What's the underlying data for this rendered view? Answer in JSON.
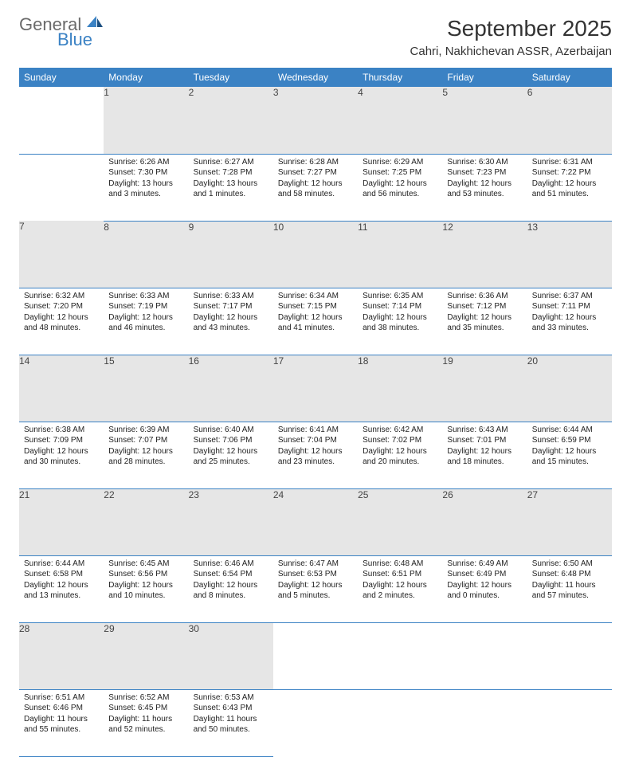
{
  "logo": {
    "word1": "General",
    "word2": "Blue"
  },
  "title": "September 2025",
  "location": "Cahri, Nakhichevan ASSR, Azerbaijan",
  "colors": {
    "header_bg": "#3b82c4",
    "header_text": "#ffffff",
    "daynum_bg": "#e6e6e6",
    "border": "#3b82c4",
    "text": "#222222",
    "logo_gray": "#6a6a6a",
    "logo_blue": "#3b82c4"
  },
  "typography": {
    "title_fontsize": 28,
    "location_fontsize": 15,
    "header_fontsize": 12,
    "cell_fontsize": 10
  },
  "weekdays": [
    "Sunday",
    "Monday",
    "Tuesday",
    "Wednesday",
    "Thursday",
    "Friday",
    "Saturday"
  ],
  "weeks": [
    [
      null,
      {
        "n": "1",
        "sr": "Sunrise: 6:26 AM",
        "ss": "Sunset: 7:30 PM",
        "dl": "Daylight: 13 hours and 3 minutes."
      },
      {
        "n": "2",
        "sr": "Sunrise: 6:27 AM",
        "ss": "Sunset: 7:28 PM",
        "dl": "Daylight: 13 hours and 1 minutes."
      },
      {
        "n": "3",
        "sr": "Sunrise: 6:28 AM",
        "ss": "Sunset: 7:27 PM",
        "dl": "Daylight: 12 hours and 58 minutes."
      },
      {
        "n": "4",
        "sr": "Sunrise: 6:29 AM",
        "ss": "Sunset: 7:25 PM",
        "dl": "Daylight: 12 hours and 56 minutes."
      },
      {
        "n": "5",
        "sr": "Sunrise: 6:30 AM",
        "ss": "Sunset: 7:23 PM",
        "dl": "Daylight: 12 hours and 53 minutes."
      },
      {
        "n": "6",
        "sr": "Sunrise: 6:31 AM",
        "ss": "Sunset: 7:22 PM",
        "dl": "Daylight: 12 hours and 51 minutes."
      }
    ],
    [
      {
        "n": "7",
        "sr": "Sunrise: 6:32 AM",
        "ss": "Sunset: 7:20 PM",
        "dl": "Daylight: 12 hours and 48 minutes."
      },
      {
        "n": "8",
        "sr": "Sunrise: 6:33 AM",
        "ss": "Sunset: 7:19 PM",
        "dl": "Daylight: 12 hours and 46 minutes."
      },
      {
        "n": "9",
        "sr": "Sunrise: 6:33 AM",
        "ss": "Sunset: 7:17 PM",
        "dl": "Daylight: 12 hours and 43 minutes."
      },
      {
        "n": "10",
        "sr": "Sunrise: 6:34 AM",
        "ss": "Sunset: 7:15 PM",
        "dl": "Daylight: 12 hours and 41 minutes."
      },
      {
        "n": "11",
        "sr": "Sunrise: 6:35 AM",
        "ss": "Sunset: 7:14 PM",
        "dl": "Daylight: 12 hours and 38 minutes."
      },
      {
        "n": "12",
        "sr": "Sunrise: 6:36 AM",
        "ss": "Sunset: 7:12 PM",
        "dl": "Daylight: 12 hours and 35 minutes."
      },
      {
        "n": "13",
        "sr": "Sunrise: 6:37 AM",
        "ss": "Sunset: 7:11 PM",
        "dl": "Daylight: 12 hours and 33 minutes."
      }
    ],
    [
      {
        "n": "14",
        "sr": "Sunrise: 6:38 AM",
        "ss": "Sunset: 7:09 PM",
        "dl": "Daylight: 12 hours and 30 minutes."
      },
      {
        "n": "15",
        "sr": "Sunrise: 6:39 AM",
        "ss": "Sunset: 7:07 PM",
        "dl": "Daylight: 12 hours and 28 minutes."
      },
      {
        "n": "16",
        "sr": "Sunrise: 6:40 AM",
        "ss": "Sunset: 7:06 PM",
        "dl": "Daylight: 12 hours and 25 minutes."
      },
      {
        "n": "17",
        "sr": "Sunrise: 6:41 AM",
        "ss": "Sunset: 7:04 PM",
        "dl": "Daylight: 12 hours and 23 minutes."
      },
      {
        "n": "18",
        "sr": "Sunrise: 6:42 AM",
        "ss": "Sunset: 7:02 PM",
        "dl": "Daylight: 12 hours and 20 minutes."
      },
      {
        "n": "19",
        "sr": "Sunrise: 6:43 AM",
        "ss": "Sunset: 7:01 PM",
        "dl": "Daylight: 12 hours and 18 minutes."
      },
      {
        "n": "20",
        "sr": "Sunrise: 6:44 AM",
        "ss": "Sunset: 6:59 PM",
        "dl": "Daylight: 12 hours and 15 minutes."
      }
    ],
    [
      {
        "n": "21",
        "sr": "Sunrise: 6:44 AM",
        "ss": "Sunset: 6:58 PM",
        "dl": "Daylight: 12 hours and 13 minutes."
      },
      {
        "n": "22",
        "sr": "Sunrise: 6:45 AM",
        "ss": "Sunset: 6:56 PM",
        "dl": "Daylight: 12 hours and 10 minutes."
      },
      {
        "n": "23",
        "sr": "Sunrise: 6:46 AM",
        "ss": "Sunset: 6:54 PM",
        "dl": "Daylight: 12 hours and 8 minutes."
      },
      {
        "n": "24",
        "sr": "Sunrise: 6:47 AM",
        "ss": "Sunset: 6:53 PM",
        "dl": "Daylight: 12 hours and 5 minutes."
      },
      {
        "n": "25",
        "sr": "Sunrise: 6:48 AM",
        "ss": "Sunset: 6:51 PM",
        "dl": "Daylight: 12 hours and 2 minutes."
      },
      {
        "n": "26",
        "sr": "Sunrise: 6:49 AM",
        "ss": "Sunset: 6:49 PM",
        "dl": "Daylight: 12 hours and 0 minutes."
      },
      {
        "n": "27",
        "sr": "Sunrise: 6:50 AM",
        "ss": "Sunset: 6:48 PM",
        "dl": "Daylight: 11 hours and 57 minutes."
      }
    ],
    [
      {
        "n": "28",
        "sr": "Sunrise: 6:51 AM",
        "ss": "Sunset: 6:46 PM",
        "dl": "Daylight: 11 hours and 55 minutes."
      },
      {
        "n": "29",
        "sr": "Sunrise: 6:52 AM",
        "ss": "Sunset: 6:45 PM",
        "dl": "Daylight: 11 hours and 52 minutes."
      },
      {
        "n": "30",
        "sr": "Sunrise: 6:53 AM",
        "ss": "Sunset: 6:43 PM",
        "dl": "Daylight: 11 hours and 50 minutes."
      },
      null,
      null,
      null,
      null
    ]
  ]
}
